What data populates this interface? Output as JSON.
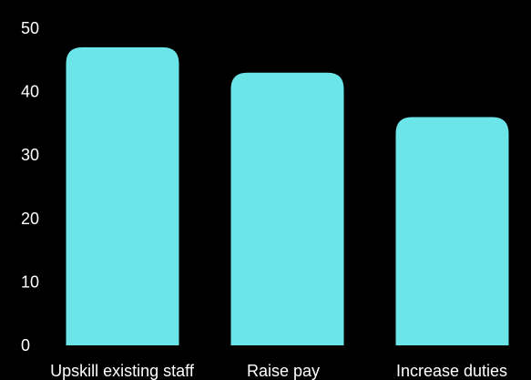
{
  "chart_data": {
    "type": "bar",
    "categories": [
      "Upskill existing staff",
      "Raise pay",
      "Increase duties"
    ],
    "values": [
      47,
      43,
      36
    ],
    "ylim": [
      0,
      50
    ],
    "yticks": [
      0,
      10,
      20,
      30,
      40,
      50
    ],
    "title": "",
    "xlabel": "",
    "ylabel": "",
    "grid": false,
    "legend": "none",
    "colors": {
      "background": "#000000",
      "bar": "#6ce5e8",
      "text": "#ffffff"
    }
  }
}
